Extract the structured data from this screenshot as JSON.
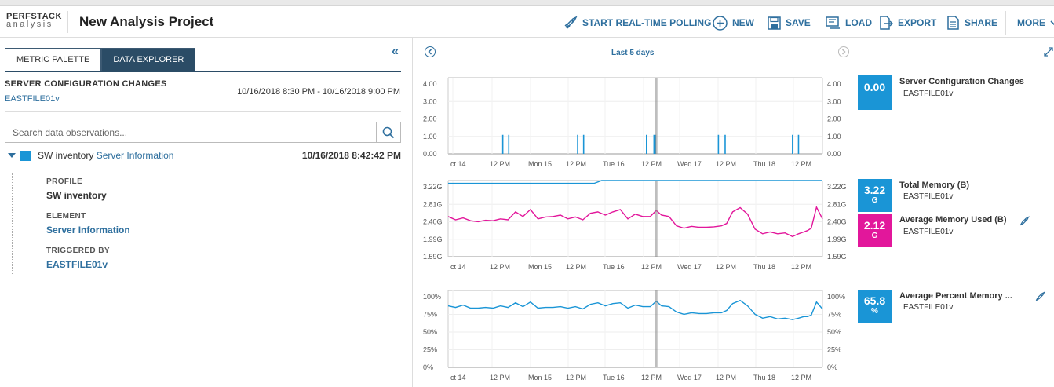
{
  "app": {
    "brand_line1": "PERFSTACK",
    "brand_line2": "analysis",
    "project_title": "New Analysis Project"
  },
  "toolbar": {
    "polling": "START REAL-TIME POLLING",
    "new": "NEW",
    "save": "SAVE",
    "load": "LOAD",
    "export": "EXPORT",
    "share": "SHARE",
    "more": "MORE"
  },
  "left": {
    "tabs": {
      "metric_palette": "METRIC PALETTE",
      "data_explorer": "DATA EXPLORER"
    },
    "section_title": "SERVER CONFIGURATION CHANGES",
    "section_node": "EASTFILE01v",
    "section_range": "10/16/2018 8:30 PM - 10/16/2018 9:00 PM",
    "search_placeholder": "Search data observations...",
    "tree": {
      "prefix": "SW inventory",
      "link": "Server Information",
      "time": "10/16/2018 8:42:42 PM"
    },
    "details": [
      {
        "label": "PROFILE",
        "value": "SW inventory"
      },
      {
        "label": "ELEMENT",
        "value": "Server Information"
      },
      {
        "label": "TRIGGERED BY",
        "value": "EASTFILE01v"
      }
    ]
  },
  "chart_header": {
    "range_label": "Last 5 days"
  },
  "x_ticks": [
    "ct 14",
    "12 PM",
    "Mon 15",
    "12 PM",
    "Tue 16",
    "12 PM",
    "Wed 17",
    "12 PM",
    "Thu 18",
    "12 PM"
  ],
  "colors": {
    "blue": "#1a95d6",
    "magenta": "#e2179b",
    "nav": "#2e6f9e"
  },
  "legends": {
    "chart1": [
      {
        "value": "0.00",
        "unit": "",
        "name": "Server Configuration Changes",
        "node": "EASTFILE01v",
        "color": "#1a95d6"
      }
    ],
    "chart2": [
      {
        "value": "3.22",
        "unit": "G",
        "name": "Total Memory (B)",
        "node": "EASTFILE01v",
        "color": "#1a95d6"
      },
      {
        "value": "2.12",
        "unit": "G",
        "name": "Average Memory Used (B)",
        "node": "EASTFILE01v",
        "color": "#e2179b"
      }
    ],
    "chart3": [
      {
        "value": "65.8",
        "unit": "%",
        "name": "Average Percent Memory ...",
        "node": "EASTFILE01v",
        "color": "#1a95d6"
      }
    ]
  },
  "chart_data": [
    {
      "type": "bar",
      "title": "",
      "y_ticks": [
        "4.00",
        "3.00",
        "2.00",
        "1.00",
        "0.00"
      ],
      "ylim": [
        0,
        4
      ],
      "xlim": [
        0,
        5
      ],
      "series": [
        {
          "name": "Server Configuration Changes",
          "x": [
            0.73,
            0.81,
            1.73,
            1.81,
            2.65,
            2.75,
            2.77,
            3.61,
            3.7,
            4.6,
            4.68
          ],
          "values": [
            1,
            1,
            1,
            1,
            1,
            1,
            1,
            1,
            1,
            1,
            1
          ]
        }
      ],
      "marker_x": 2.78
    },
    {
      "type": "line",
      "title": "",
      "y_ticks": [
        "3.22G",
        "2.81G",
        "2.40G",
        "1.99G",
        "1.59G"
      ],
      "ylim": [
        1.59,
        3.22
      ],
      "xlim": [
        0,
        5
      ],
      "series": [
        {
          "name": "Total Memory (B)",
          "x": [
            0,
            1.95,
            2.05,
            5
          ],
          "values": [
            3.16,
            3.16,
            3.22,
            3.22
          ]
        },
        {
          "name": "Average Memory Used (B)",
          "x": [
            0,
            0.1,
            0.2,
            0.3,
            0.4,
            0.5,
            0.6,
            0.7,
            0.8,
            0.9,
            1.0,
            1.1,
            1.2,
            1.3,
            1.4,
            1.5,
            1.6,
            1.7,
            1.8,
            1.9,
            2.0,
            2.1,
            2.2,
            2.3,
            2.4,
            2.5,
            2.6,
            2.7,
            2.78,
            2.85,
            2.95,
            3.05,
            3.15,
            3.25,
            3.35,
            3.45,
            3.55,
            3.65,
            3.72,
            3.8,
            3.9,
            4.0,
            4.1,
            4.2,
            4.3,
            4.4,
            4.5,
            4.6,
            4.68,
            4.75,
            4.8,
            4.85,
            4.92,
            5.0
          ],
          "values": [
            2.45,
            2.38,
            2.42,
            2.36,
            2.34,
            2.37,
            2.36,
            2.4,
            2.38,
            2.55,
            2.45,
            2.6,
            2.4,
            2.44,
            2.45,
            2.48,
            2.4,
            2.44,
            2.38,
            2.52,
            2.55,
            2.48,
            2.55,
            2.6,
            2.4,
            2.5,
            2.45,
            2.45,
            2.58,
            2.48,
            2.45,
            2.25,
            2.2,
            2.24,
            2.22,
            2.22,
            2.23,
            2.25,
            2.3,
            2.55,
            2.64,
            2.5,
            2.18,
            2.08,
            2.12,
            2.08,
            2.1,
            2.02,
            2.08,
            2.12,
            2.15,
            2.2,
            2.65,
            2.4
          ]
        }
      ],
      "marker_x": 2.78
    },
    {
      "type": "line",
      "title": "",
      "y_ticks": [
        "100%",
        "75%",
        "50%",
        "25%",
        "0%"
      ],
      "ylim": [
        0,
        100
      ],
      "xlim": [
        0,
        5
      ],
      "series": [
        {
          "name": "Average Percent Memory ...",
          "x": [
            0,
            0.1,
            0.2,
            0.3,
            0.4,
            0.5,
            0.6,
            0.7,
            0.8,
            0.9,
            1.0,
            1.1,
            1.2,
            1.3,
            1.4,
            1.5,
            1.6,
            1.7,
            1.8,
            1.9,
            2.0,
            2.1,
            2.2,
            2.3,
            2.4,
            2.5,
            2.6,
            2.7,
            2.78,
            2.85,
            2.95,
            3.05,
            3.15,
            3.25,
            3.35,
            3.45,
            3.55,
            3.65,
            3.72,
            3.8,
            3.9,
            4.0,
            4.1,
            4.2,
            4.3,
            4.4,
            4.5,
            4.6,
            4.68,
            4.75,
            4.8,
            4.85,
            4.92,
            5.0
          ],
          "values": [
            80,
            78,
            81,
            77,
            77,
            78,
            77,
            80,
            78,
            84,
            79,
            85,
            77,
            78,
            78,
            79,
            77,
            79,
            76,
            82,
            84,
            80,
            83,
            84,
            77,
            81,
            79,
            79,
            86,
            80,
            79,
            72,
            69,
            71,
            70,
            70,
            71,
            71,
            74,
            83,
            87,
            80,
            69,
            64,
            66,
            63,
            64,
            62,
            64,
            66,
            66,
            68,
            85,
            76
          ]
        }
      ],
      "marker_x": 2.78
    }
  ]
}
